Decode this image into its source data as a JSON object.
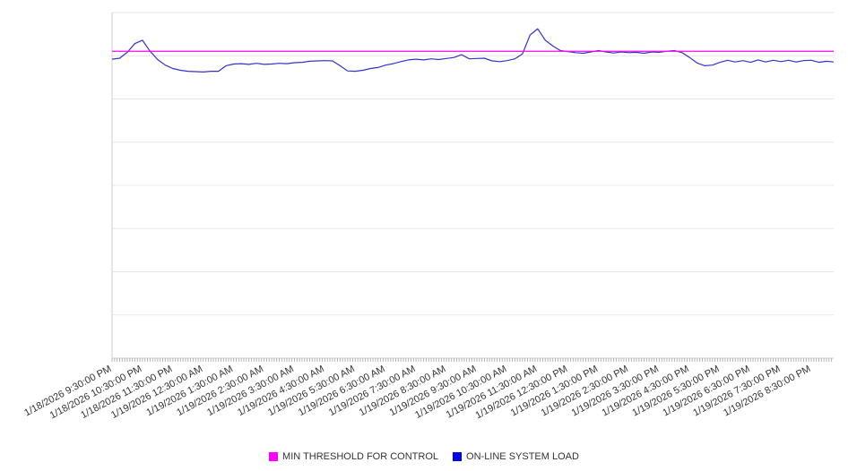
{
  "chart_data": {
    "type": "line",
    "title": "",
    "xlabel": "",
    "ylabel": "",
    "ylim": [
      0,
      100
    ],
    "grid": "horizontal",
    "legend_position": "bottom",
    "categories": [
      "1/18/2026 9:30:00 PM",
      "1/18/2026 10:30:00 PM",
      "1/18/2026 11:30:00 PM",
      "1/19/2026 12:30:00 AM",
      "1/19/2026 1:30:00 AM",
      "1/19/2026 2:30:00 AM",
      "1/19/2026 3:30:00 AM",
      "1/19/2026 4:30:00 AM",
      "1/19/2026 5:30:00 AM",
      "1/19/2026 6:30:00 AM",
      "1/19/2026 7:30:00 AM",
      "1/19/2026 8:30:00 AM",
      "1/19/2026 9:30:00 AM",
      "1/19/2026 10:30:00 AM",
      "1/19/2026 11:30:00 AM",
      "1/19/2026 12:30:00 PM",
      "1/19/2026 1:30:00 PM",
      "1/19/2026 2:30:00 PM",
      "1/19/2026 3:30:00 PM",
      "1/19/2026 4:30:00 PM",
      "1/19/2026 5:30:00 PM",
      "1/19/2026 6:30:00 PM",
      "1/19/2026 7:30:00 PM",
      "1/19/2026 8:30:00 PM"
    ],
    "series": [
      {
        "name": "MIN THRESHOLD FOR CONTROL",
        "type": "threshold",
        "color": "#ff00ff",
        "value": 88.8
      },
      {
        "name": "ON-LINE SYSTEM LOAD",
        "type": "line",
        "color": "#3333cc",
        "legend_color": "#0000ee",
        "points_per_hour": 4,
        "values": [
          86.5,
          86.8,
          88.5,
          91.0,
          92.0,
          88.8,
          86.4,
          84.8,
          83.8,
          83.3,
          83.0,
          82.9,
          82.8,
          83.0,
          83.0,
          84.6,
          85.1,
          85.2,
          85.0,
          85.3,
          85.0,
          85.1,
          85.3,
          85.2,
          85.5,
          85.6,
          85.9,
          86.0,
          86.1,
          86.0,
          84.6,
          83.1,
          83.0,
          83.3,
          83.8,
          84.1,
          84.8,
          85.2,
          85.8,
          86.3,
          86.5,
          86.3,
          86.6,
          86.4,
          86.7,
          87.0,
          87.8,
          86.6,
          86.7,
          86.8,
          86.0,
          85.8,
          86.1,
          86.6,
          88.0,
          93.5,
          95.3,
          92.0,
          90.3,
          89.0,
          88.7,
          88.4,
          88.2,
          88.6,
          89.0,
          88.6,
          88.3,
          88.6,
          88.4,
          88.5,
          88.2,
          88.6,
          88.5,
          88.8,
          89.0,
          88.4,
          87.0,
          85.4,
          84.6,
          84.8,
          85.6,
          86.2,
          85.7,
          86.1,
          85.6,
          86.3,
          85.7,
          86.2,
          85.8,
          86.2,
          85.7,
          86.1,
          86.2,
          85.6,
          85.9,
          85.7
        ]
      }
    ],
    "style": {
      "gridline_color": "#e7e7e7",
      "axis_color": "#cfcfcf",
      "tick_color": "#b5b5b5",
      "label_color": "#333333",
      "label_font_size": 11,
      "minor_ticks_per_hour": 12
    }
  }
}
